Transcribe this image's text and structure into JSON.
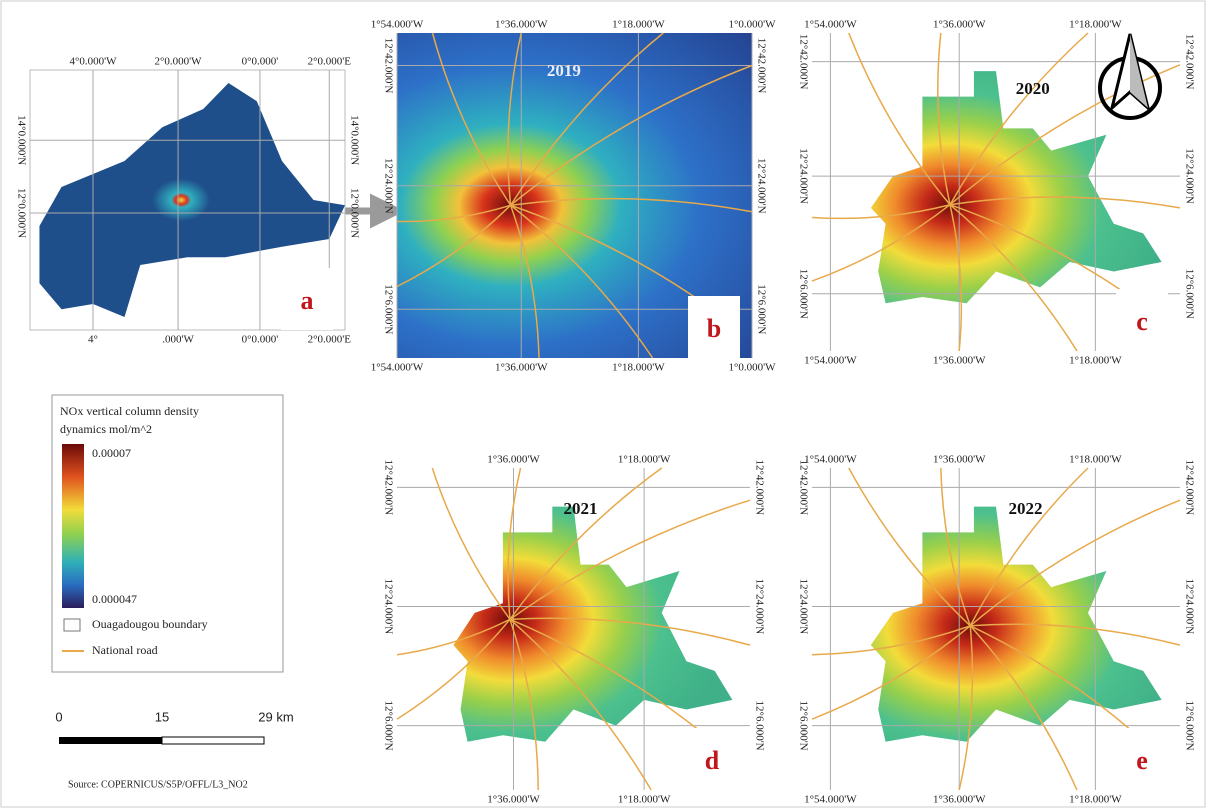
{
  "panels": [
    {
      "label": "a",
      "top": [
        "4°0.000'W",
        "2°0.000'W",
        "0°0.000'",
        "2°0.000'E"
      ],
      "bottom": [
        "4°",
        ".000'W",
        "0°0.000'",
        "2°0.000'E"
      ],
      "left": [
        "14°0.000'N",
        "12°0.000'N"
      ],
      "right": [
        "14°0.000'N",
        "12°0.000'N"
      ]
    },
    {
      "label": "b",
      "year": "2019",
      "top": [
        "1°54.000'W",
        "1°36.000'W",
        "1°18.000'W",
        "1°0.000'W"
      ],
      "bottom": [
        "1°54.000'W",
        "1°36.000'W",
        "1°18.000'W",
        "1°0.000'W"
      ],
      "left": [
        "12°42.000'N",
        "12°24.000'N",
        "12°6.000'N"
      ],
      "right": [
        "12°42.000'N",
        "12°24.000'N",
        "12°6.000'N"
      ]
    },
    {
      "label": "c",
      "year": "2020",
      "top": [
        "1°54.000'W",
        "1°36.000'W",
        "1°18.000'W"
      ],
      "bottom": [
        "1°54.000'W",
        "1°36.000'W",
        "1°18.000'W"
      ],
      "left": [
        "12°42.000'N",
        "12°24.000'N",
        "12°6.000'N"
      ],
      "right": [
        "12°42.000'N",
        "12°24.000'N",
        "12°6.000'N"
      ]
    },
    {
      "label": "d",
      "year": "2021",
      "top": [
        "1°36.000'W",
        "1°18.000'W"
      ],
      "bottom": [
        "1°36.000'W",
        "1°18.000'W"
      ],
      "left": [
        "12°42.000'N",
        "12°24.000'N",
        "12°6.000'N"
      ],
      "right": [
        "12°42.000'N",
        "12°24.000'N",
        "12°6.000'N"
      ]
    },
    {
      "label": "e",
      "year": "2022",
      "top": [
        "1°54.000'W",
        "1°36.000'W",
        "1°18.000'W"
      ],
      "bottom": [
        "1°54.000'W",
        "1°36.000'W",
        "1°18.000'W"
      ],
      "left": [
        "12°42.000'N",
        "12°24.000'N",
        "12°6.000'N"
      ],
      "right": [
        "12°42.000'N",
        "12°24.000'N",
        "12°6.000'N"
      ]
    }
  ],
  "legend": {
    "title_lines": [
      "NOx vertical column density",
      "dynamics mol/m^2"
    ],
    "max": "0.00007",
    "min": "0.000047",
    "items": [
      "Ouagadougou boundary",
      "National road"
    ]
  },
  "scale_bar": {
    "labels": [
      "0",
      "15",
      "29 km"
    ]
  },
  "source": "Source: COPERNICUS/S5P/OFFL/L3_NO2"
}
